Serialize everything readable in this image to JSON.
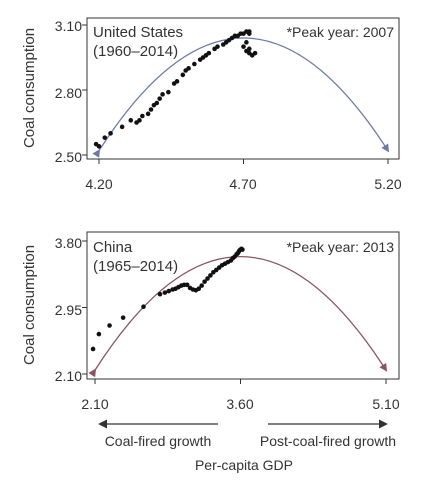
{
  "chart_data": [
    {
      "type": "scatter",
      "panel_label": "United States",
      "period": "(1960–2014)",
      "annotation": "*Peak year: 2007",
      "ylabel": "Coal consumption",
      "xlim": [
        4.2,
        5.2
      ],
      "ylim": [
        2.5,
        3.1
      ],
      "xticks": [
        "4.20",
        "4.70",
        "5.20"
      ],
      "yticks": [
        "2.50",
        "2.80",
        "3.10"
      ],
      "x": [
        4.19,
        4.2,
        4.22,
        4.24,
        4.28,
        4.31,
        4.33,
        4.34,
        4.35,
        4.37,
        4.38,
        4.39,
        4.4,
        4.41,
        4.42,
        4.44,
        4.46,
        4.47,
        4.49,
        4.5,
        4.51,
        4.53,
        4.55,
        4.56,
        4.57,
        4.58,
        4.6,
        4.61,
        4.63,
        4.64,
        4.65,
        4.66,
        4.67,
        4.68,
        4.69,
        4.7,
        4.71,
        4.72,
        4.72,
        4.71,
        4.7,
        4.71,
        4.72,
        4.72,
        4.73,
        4.74
      ],
      "y": [
        2.55,
        2.54,
        2.58,
        2.6,
        2.63,
        2.66,
        2.65,
        2.66,
        2.68,
        2.69,
        2.71,
        2.73,
        2.74,
        2.76,
        2.78,
        2.79,
        2.83,
        2.84,
        2.87,
        2.89,
        2.9,
        2.92,
        2.94,
        2.95,
        2.96,
        2.97,
        2.99,
        3.0,
        3.01,
        3.02,
        3.03,
        3.04,
        3.05,
        3.05,
        3.06,
        3.06,
        3.07,
        3.07,
        3.06,
        3.02,
        3.0,
        2.98,
        2.97,
        2.99,
        2.96,
        2.97
      ],
      "fit": {
        "x": [
          4.2,
          4.7,
          5.2
        ],
        "y": [
          2.52,
          3.04,
          2.52
        ],
        "color": "#6d7aa6"
      }
    },
    {
      "type": "scatter",
      "panel_label": "China",
      "period": "(1965–2014)",
      "annotation": "*Peak year: 2013",
      "ylabel": "Coal consumption",
      "xlim": [
        2.1,
        5.1
      ],
      "ylim": [
        2.1,
        3.8
      ],
      "xticks": [
        "2.10",
        "3.60",
        "5.10"
      ],
      "yticks": [
        "2.10",
        "2.95",
        "3.80"
      ],
      "x": [
        2.08,
        2.14,
        2.25,
        2.39,
        2.6,
        2.77,
        2.82,
        2.86,
        2.9,
        2.93,
        2.96,
        2.99,
        3.02,
        3.05,
        3.08,
        3.11,
        3.14,
        3.17,
        3.2,
        3.23,
        3.26,
        3.29,
        3.32,
        3.35,
        3.38,
        3.41,
        3.44,
        3.47,
        3.5,
        3.52,
        3.54,
        3.56,
        3.57,
        3.58,
        3.59,
        3.6,
        3.61,
        3.62
      ],
      "y": [
        2.42,
        2.61,
        2.72,
        2.82,
        2.96,
        3.12,
        3.14,
        3.16,
        3.18,
        3.19,
        3.21,
        3.23,
        3.24,
        3.24,
        3.2,
        3.18,
        3.17,
        3.19,
        3.23,
        3.28,
        3.32,
        3.36,
        3.4,
        3.43,
        3.46,
        3.49,
        3.51,
        3.53,
        3.55,
        3.58,
        3.6,
        3.63,
        3.64,
        3.66,
        3.68,
        3.69,
        3.7,
        3.69
      ],
      "fit": {
        "x": [
          2.1,
          3.6,
          5.1
        ],
        "y": [
          2.15,
          3.6,
          2.15
        ],
        "color": "#8a5460"
      }
    }
  ],
  "footer": {
    "left_label": "Coal-fired growth",
    "right_label": "Post-coal-fired growth",
    "xlabel": "Per-capita GDP"
  }
}
